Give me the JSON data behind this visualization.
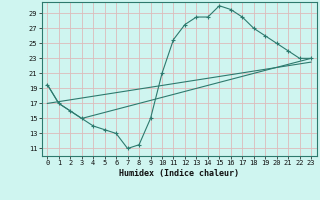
{
  "xlabel": "Humidex (Indice chaleur)",
  "bg_color": "#cff5f0",
  "grid_color": "#ddbbbb",
  "line_color": "#2d7a6e",
  "marker_color": "#2d7a6e",
  "xlim": [
    -0.5,
    23.5
  ],
  "ylim": [
    10.0,
    30.5
  ],
  "xticks": [
    0,
    1,
    2,
    3,
    4,
    5,
    6,
    7,
    8,
    9,
    10,
    11,
    12,
    13,
    14,
    15,
    16,
    17,
    18,
    19,
    20,
    21,
    22,
    23
  ],
  "yticks": [
    11,
    13,
    15,
    17,
    19,
    21,
    23,
    25,
    27,
    29
  ],
  "line1_x": [
    0,
    1,
    2,
    3,
    4,
    5,
    6,
    7,
    8,
    9,
    10,
    11,
    12,
    13,
    14,
    15,
    16,
    17,
    18,
    19,
    20,
    21,
    22,
    23
  ],
  "line1_y": [
    19.5,
    17.0,
    16.0,
    15.0,
    14.0,
    13.5,
    13.0,
    11.0,
    11.5,
    15.0,
    21.0,
    25.5,
    27.5,
    28.5,
    28.5,
    30.0,
    29.5,
    28.5,
    27.0,
    26.0,
    25.0,
    24.0,
    23.0,
    23.0
  ],
  "line2_x": [
    0,
    1,
    2,
    3,
    23
  ],
  "line2_y": [
    19.5,
    17.0,
    16.0,
    15.0,
    23.0
  ],
  "line3_x": [
    0,
    23
  ],
  "line3_y": [
    17.0,
    22.5
  ],
  "xlabel_fontsize": 6.0,
  "tick_fontsize": 5.0
}
